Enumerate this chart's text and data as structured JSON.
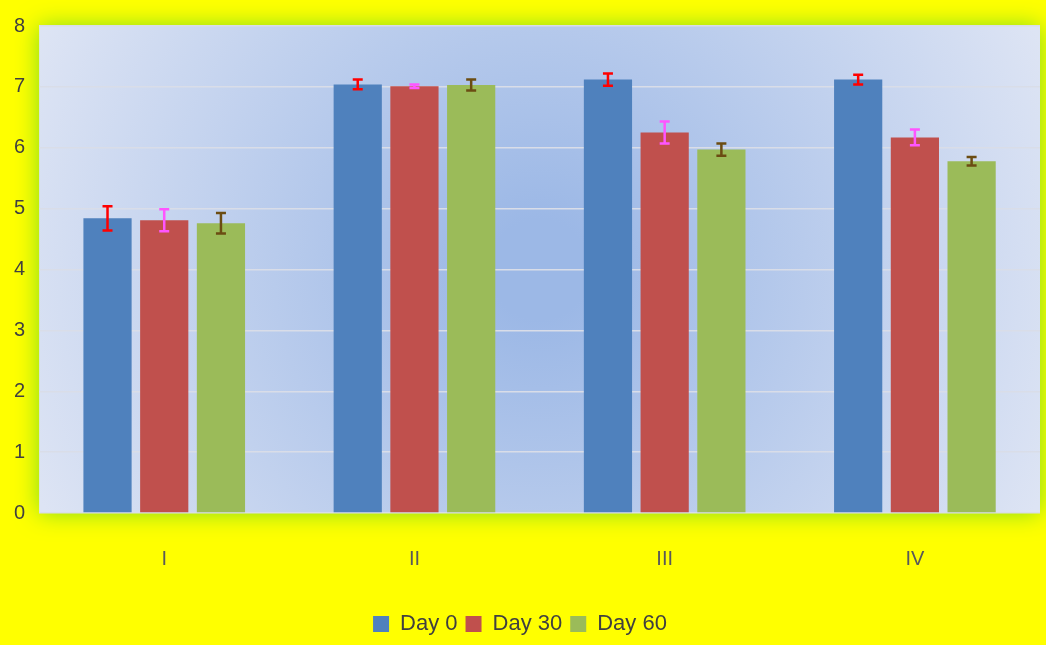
{
  "chart_data": {
    "type": "bar",
    "categories": [
      "I",
      "II",
      "III",
      "IV"
    ],
    "series": [
      {
        "name": "Day 0",
        "color": "#4f81bd",
        "values": [
          4.84,
          7.04,
          7.12,
          7.12
        ],
        "errors": [
          0.2,
          0.08,
          0.1,
          0.08
        ]
      },
      {
        "name": "Day 30",
        "color": "#c0504d",
        "values": [
          4.81,
          7.01,
          6.25,
          6.17
        ],
        "errors": [
          0.18,
          0.03,
          0.18,
          0.13
        ]
      },
      {
        "name": "Day 60",
        "color": "#9bbb59",
        "values": [
          4.76,
          7.03,
          5.97,
          5.78
        ],
        "errors": [
          0.17,
          0.09,
          0.1,
          0.07
        ]
      }
    ],
    "ylim": [
      0,
      8
    ],
    "yticks": [
      0,
      1,
      2,
      3,
      4,
      5,
      6,
      7,
      8
    ],
    "grid": "y",
    "legend": "bottom"
  }
}
